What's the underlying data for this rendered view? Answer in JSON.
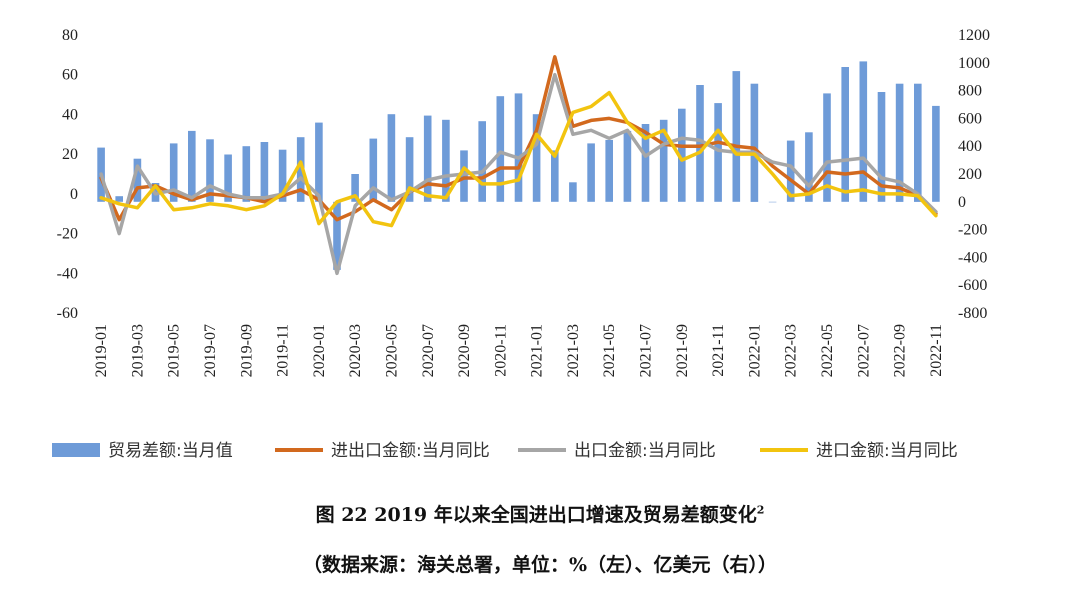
{
  "chart_data": {
    "type": "bar+line",
    "title": "图  22 2019 年以来全国进出口增速及贸易差额变化",
    "title_footnote": "2",
    "subtitle": "（数据来源：海关总署，单位：%（左）、亿美元（右））",
    "categories": [
      "2019-01",
      "2019-02",
      "2019-03",
      "2019-04",
      "2019-05",
      "2019-06",
      "2019-07",
      "2019-08",
      "2019-09",
      "2019-10",
      "2019-11",
      "2019-12",
      "2020-01",
      "2020-02",
      "2020-03",
      "2020-04",
      "2020-05",
      "2020-06",
      "2020-07",
      "2020-08",
      "2020-09",
      "2020-10",
      "2020-11",
      "2020-12",
      "2021-01",
      "2021-02",
      "2021-03",
      "2021-04",
      "2021-05",
      "2021-06",
      "2021-07",
      "2021-08",
      "2021-09",
      "2021-10",
      "2021-11",
      "2021-12",
      "2022-01",
      "2022-02",
      "2022-03",
      "2022-04",
      "2022-05",
      "2022-06",
      "2022-07",
      "2022-08",
      "2022-09",
      "2022-10",
      "2022-11"
    ],
    "x_tick_labels": [
      "2019-01",
      "2019-03",
      "2019-05",
      "2019-07",
      "2019-09",
      "2019-11",
      "2020-01",
      "2020-03",
      "2020-05",
      "2020-07",
      "2020-09",
      "2020-11",
      "2021-01",
      "2021-03",
      "2021-05",
      "2021-07",
      "2021-09",
      "2021-11",
      "2022-01",
      "2022-03",
      "2022-05",
      "2022-07",
      "2022-09",
      "2022-11"
    ],
    "y_left": {
      "min": -60,
      "max": 80,
      "ticks": [
        "80",
        "60",
        "40",
        "20",
        "0",
        "-20",
        "-40",
        "-60"
      ]
    },
    "y_right": {
      "min": -800,
      "max": 1200,
      "ticks": [
        "1200",
        "1000",
        "800",
        "600",
        "400",
        "200",
        "0",
        "-200",
        "-400",
        "-600",
        "-800"
      ]
    },
    "legend_position": "bottom",
    "grid": false,
    "series": [
      {
        "name": "贸易差额:当月值",
        "kind": "bar",
        "axis": "right",
        "color": "#6E9BD8",
        "values": [
          390,
          40,
          310,
          135,
          420,
          510,
          450,
          340,
          400,
          430,
          375,
          465,
          570,
          -490,
          200,
          455,
          630,
          465,
          620,
          590,
          370,
          580,
          760,
          780,
          630,
          370,
          140,
          420,
          445,
          510,
          560,
          590,
          670,
          840,
          710,
          940,
          850,
          0,
          440,
          500,
          780,
          970,
          1010,
          790,
          850,
          850,
          690
        ]
      },
      {
        "name": "进出口金额:当月同比",
        "kind": "line",
        "axis": "left",
        "color": "#D2691E",
        "values": [
          8,
          -13,
          3,
          4,
          0,
          -3,
          0,
          -1,
          -2,
          -4,
          -1,
          2,
          -3,
          -13,
          -9,
          -3,
          -8,
          1,
          5,
          4,
          8,
          8,
          13,
          13,
          32,
          69,
          34,
          37,
          38,
          36,
          31,
          25,
          24,
          24,
          26,
          24,
          23,
          14,
          7,
          0,
          11,
          10,
          11,
          4,
          3,
          -1,
          -10
        ]
      },
      {
        "name": "出口金额:当月同比",
        "kind": "line",
        "axis": "left",
        "color": "#A6A6A6",
        "values": [
          10,
          -20,
          14,
          0,
          2,
          -2,
          4,
          0,
          -2,
          -2,
          0,
          8,
          -1,
          -40,
          -6,
          3,
          -3,
          1,
          7,
          9,
          10,
          11,
          21,
          18,
          25,
          60,
          30,
          32,
          28,
          32,
          19,
          25,
          28,
          27,
          22,
          21,
          21,
          16,
          14,
          4,
          16,
          17,
          18,
          8,
          6,
          0,
          -9
        ]
      },
      {
        "name": "进口金额:当月同比",
        "kind": "line",
        "axis": "left",
        "color": "#F2C40F",
        "values": [
          -2,
          -5,
          -7,
          4,
          -8,
          -7,
          -5,
          -6,
          -8,
          -6,
          0,
          16,
          -15,
          -4,
          -1,
          -14,
          -16,
          3,
          -1,
          -2,
          13,
          5,
          5,
          7,
          30,
          19,
          41,
          44,
          51,
          36,
          28,
          32,
          17,
          21,
          32,
          20,
          20,
          10,
          -1,
          0,
          4,
          1,
          2,
          0,
          0,
          -1,
          -11
        ]
      }
    ]
  }
}
